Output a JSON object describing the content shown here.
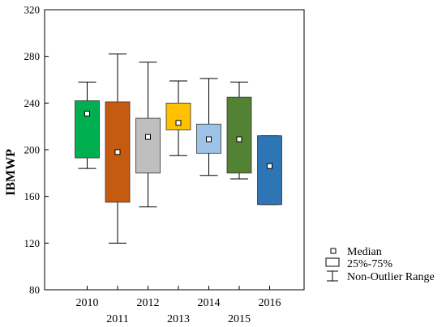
{
  "chart_data": {
    "type": "box",
    "ylabel": "IBMWP",
    "ylim": [
      80,
      320
    ],
    "yticks": [
      80,
      120,
      160,
      200,
      240,
      280,
      320
    ],
    "categories": [
      "2010",
      "2011",
      "2012",
      "2013",
      "2014",
      "2015",
      "2016"
    ],
    "boxes": [
      {
        "label": "2010",
        "min": 184,
        "q1": 193,
        "median": 231,
        "q3": 242,
        "max": 258,
        "color": "#00b050"
      },
      {
        "label": "2011",
        "min": 120,
        "q1": 155,
        "median": 198,
        "q3": 241,
        "max": 282,
        "color": "#c55a11"
      },
      {
        "label": "2012",
        "min": 151,
        "q1": 180,
        "median": 211,
        "q3": 227,
        "max": 275,
        "color": "#bfbfbf"
      },
      {
        "label": "2013",
        "min": 195,
        "q1": 217,
        "median": 223,
        "q3": 240,
        "max": 259,
        "color": "#ffc000"
      },
      {
        "label": "2014",
        "min": 178,
        "q1": 197,
        "median": 209,
        "q3": 222,
        "max": 261,
        "color": "#9dc3e6"
      },
      {
        "label": "2015",
        "min": 175,
        "q1": 180,
        "median": 209,
        "q3": 245,
        "max": 258,
        "color": "#548235"
      },
      {
        "label": "2016",
        "min": 153,
        "q1": 153,
        "median": 186,
        "q3": 212,
        "max": 212,
        "color": "#2e75b6"
      }
    ],
    "legend": {
      "placement": "bottom-right",
      "entries": [
        "Median",
        "25%-75%",
        "Non-Outlier Range"
      ]
    },
    "grid": false
  }
}
